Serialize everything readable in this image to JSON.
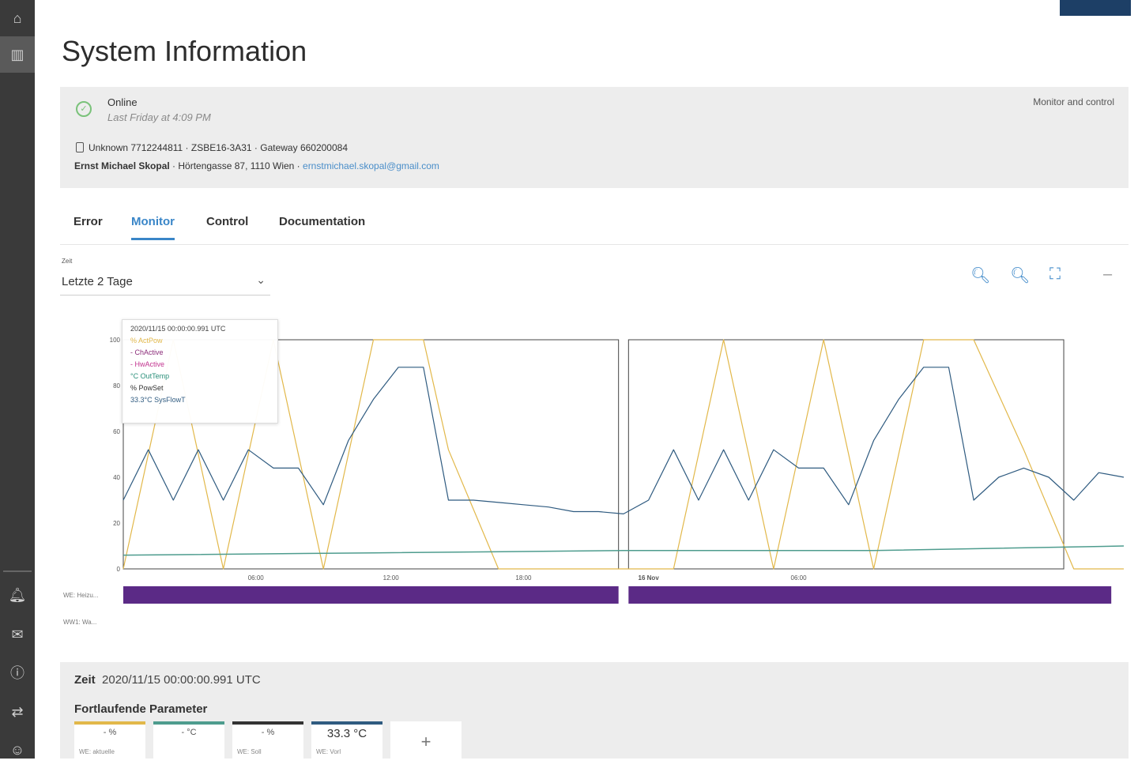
{
  "page_title": "System Information",
  "status": {
    "label": "Online",
    "time": "Last Friday at 4:09 PM",
    "monitor_link": "Monitor and control"
  },
  "device": {
    "line": "Unknown 7712244811 · ZSBE16-3A31 · Gateway 660200084",
    "owner_name": "Ernst Michael Skopal",
    "owner_address": " · Hörtengasse 87, 1110 Wien · ",
    "owner_email": "ernstmichael.skopal@gmail.com"
  },
  "tabs": [
    "Error",
    "Monitor",
    "Control",
    "Documentation"
  ],
  "active_tab": "Monitor",
  "time_selector": {
    "label": "Zeit",
    "value": "Letzte 2 Tage"
  },
  "toolbar": {
    "icons": [
      "zoom-out-icon",
      "zoom-in-icon",
      "fullscreen-icon",
      "minimize-icon"
    ]
  },
  "tooltip": {
    "time": "2020/11/15 00:00:00.991 UTC",
    "rows": [
      "% ActPow",
      "- ChActive",
      "- HwActive",
      "°C OutTemp",
      "% PowSet",
      "33.3°C SysFlowT"
    ]
  },
  "chart_data": {
    "type": "line",
    "x_ticks": [
      "06:00",
      "12:00",
      "18:00",
      "16 Nov",
      "06:00"
    ],
    "y_ticks": [
      0,
      20,
      40,
      60,
      80,
      100
    ],
    "ylim": [
      0,
      100
    ],
    "series": [
      {
        "name": "% ActPow",
        "color": "#e2b84a",
        "x": [
          0,
          2,
          4,
          6,
          8,
          10,
          12,
          13,
          15,
          18,
          20,
          22,
          24,
          26,
          28,
          30,
          32,
          34,
          36,
          38,
          40
        ],
        "values": [
          0,
          100,
          0,
          100,
          0,
          100,
          100,
          52,
          0,
          0,
          0,
          0,
          100,
          0,
          100,
          0,
          100,
          100,
          52,
          0,
          0
        ]
      },
      {
        "name": "33.3°C SysFlowT",
        "color": "#2f5b80",
        "x": [
          0,
          1,
          2,
          3,
          4,
          5,
          6,
          7,
          8,
          9,
          10,
          11,
          12,
          13,
          14,
          15,
          16,
          17,
          18,
          19,
          20,
          21,
          22,
          23,
          24,
          25,
          26,
          27,
          28,
          29,
          30,
          31,
          32,
          33,
          34,
          35,
          36,
          37,
          38,
          39,
          40
        ],
        "values": [
          30,
          52,
          30,
          52,
          30,
          52,
          44,
          44,
          28,
          56,
          74,
          88,
          88,
          30,
          30,
          29,
          28,
          27,
          25,
          25,
          24,
          30,
          52,
          30,
          52,
          30,
          52,
          44,
          44,
          28,
          56,
          74,
          88,
          88,
          30,
          40,
          44,
          40,
          30,
          42,
          40
        ]
      },
      {
        "name": "°C OutTemp",
        "color": "#4e9c8e",
        "x": [
          0,
          10,
          20,
          30,
          40
        ],
        "values": [
          6,
          7,
          8,
          8,
          10
        ]
      }
    ],
    "bands": [
      {
        "name": "WE: Heizu...",
        "color": "#5b2a86",
        "segments": [
          [
            0,
            19.8
          ],
          [
            20.2,
            39.5
          ]
        ]
      },
      {
        "name": "WW1: Wa...",
        "color": "#5b2a86",
        "segments": []
      }
    ]
  },
  "detail": {
    "zeit_label": "Zeit",
    "zeit_value": "2020/11/15 00:00:00.991 UTC",
    "section": "Fortlaufende Parameter",
    "tiles": [
      {
        "value": "- %",
        "caption": "WE: aktuelle",
        "color": "#e2b84a"
      },
      {
        "value": "- °C",
        "caption": "",
        "color": "#4e9c8e"
      },
      {
        "value": "- %",
        "caption": "WE: Soll",
        "color": "#333333"
      },
      {
        "value": "33.3 °C",
        "caption": "WE: Vorl",
        "color": "#2f5b80"
      }
    ],
    "add_label": "+"
  }
}
